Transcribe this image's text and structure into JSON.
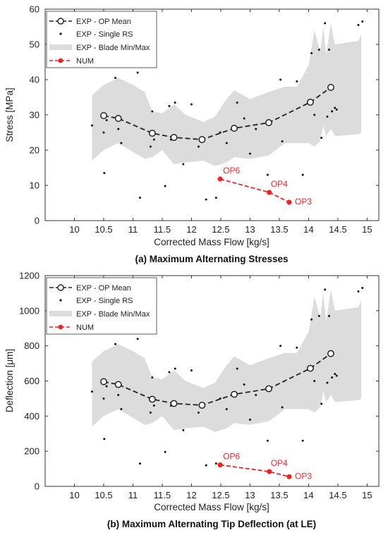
{
  "colors": {
    "num": "#e8262a",
    "band": "#dcdcdc",
    "mean": "#222222",
    "frame": "#333333"
  },
  "chart_data": [
    {
      "type": "line",
      "caption": "(a) Maximum Alternating Stresses",
      "xlabel": "Corrected Mass Flow [kg/s]",
      "ylabel": "Stress [MPa]",
      "xlim": [
        9.5,
        15.2
      ],
      "ylim": [
        0,
        60
      ],
      "xticks": [
        10,
        10.5,
        11,
        11.5,
        12,
        12.5,
        13,
        13.5,
        14,
        14.5,
        15
      ],
      "yticks": [
        0,
        10,
        20,
        30,
        40,
        50,
        60
      ],
      "grid": false,
      "legend_position": "top-left",
      "legend": [
        "EXP - OP Mean",
        "EXP - Single RS",
        "EXP - Blade Min/Max",
        "NUM"
      ],
      "band": {
        "name": "EXP - Blade Min/Max",
        "x": [
          10.3,
          10.5,
          10.75,
          11.0,
          11.2,
          11.33,
          11.5,
          11.7,
          11.9,
          12.2,
          12.4,
          12.6,
          12.73,
          13.0,
          13.32,
          13.6,
          13.8,
          14.0,
          14.1,
          14.2,
          14.25,
          14.3,
          14.38,
          14.45,
          14.85,
          14.9
        ],
        "upper": [
          35.5,
          38.5,
          40.5,
          38.5,
          36.5,
          31.0,
          30.5,
          33.0,
          30.0,
          28.0,
          29.5,
          34.5,
          37.0,
          34.5,
          36.5,
          38.0,
          38.0,
          44.0,
          54.0,
          48.0,
          55.0,
          47.0,
          56.0,
          50.0,
          51.0,
          53.0
        ],
        "lower": [
          17.0,
          20.0,
          22.0,
          19.5,
          17.5,
          18.0,
          20.0,
          16.0,
          16.5,
          17.0,
          15.5,
          16.5,
          18.0,
          17.5,
          18.5,
          22.0,
          22.0,
          22.0,
          21.0,
          22.5,
          27.0,
          24.0,
          26.0,
          24.0,
          24.5,
          25.0
        ]
      },
      "series": [
        {
          "name": "EXP - OP Mean",
          "x": [
            10.5,
            10.75,
            11.33,
            11.7,
            12.18,
            12.73,
            13.32,
            14.03,
            14.38
          ],
          "y": [
            29.8,
            29.0,
            24.8,
            23.6,
            23.0,
            26.2,
            27.8,
            33.6,
            37.8
          ]
        },
        {
          "name": "NUM",
          "x": [
            12.49,
            13.33,
            13.67
          ],
          "y": [
            11.8,
            8.0,
            5.2
          ],
          "labels": [
            "OP6",
            "OP4",
            "OP3"
          ]
        }
      ],
      "scatter": {
        "name": "EXP - Single RS",
        "x": [
          10.3,
          10.5,
          10.51,
          10.55,
          10.7,
          10.75,
          10.8,
          11.08,
          11.12,
          11.3,
          11.33,
          11.36,
          11.55,
          11.62,
          11.65,
          11.72,
          11.86,
          12.0,
          12.12,
          12.25,
          12.42,
          12.49,
          12.6,
          12.78,
          12.9,
          13.0,
          13.1,
          13.3,
          13.52,
          13.55,
          13.8,
          13.9,
          14.05,
          14.1,
          14.18,
          14.22,
          14.28,
          14.32,
          14.35,
          14.4,
          14.45,
          14.48,
          14.85,
          14.92
        ],
        "y": [
          27.0,
          25.0,
          13.5,
          28.5,
          40.5,
          26.0,
          22.0,
          42.0,
          6.5,
          21.0,
          31.0,
          23.0,
          9.8,
          32.5,
          23.0,
          33.5,
          16.0,
          33.0,
          21.0,
          6.0,
          6.5,
          25.0,
          22.0,
          33.5,
          29.0,
          19.0,
          26.0,
          13.0,
          40.0,
          22.5,
          39.5,
          13.0,
          47.5,
          30.0,
          48.5,
          23.5,
          56.0,
          29.5,
          48.5,
          31.0,
          32.0,
          31.5,
          55.5,
          56.5
        ]
      }
    },
    {
      "type": "line",
      "caption": "(b) Maximum Alternating Tip Deflection (at LE)",
      "xlabel": "Corrected Mass Flow [kg/s]",
      "ylabel": "Deflection [μm]",
      "xlim": [
        9.5,
        15.2
      ],
      "ylim": [
        0,
        1200
      ],
      "xticks": [
        10,
        10.5,
        11,
        11.5,
        12,
        12.5,
        13,
        13.5,
        14,
        14.5,
        15
      ],
      "yticks": [
        0,
        200,
        400,
        600,
        800,
        1000,
        1200
      ],
      "grid": false,
      "legend_position": "top-left",
      "legend": [
        "EXP - OP Mean",
        "EXP - Single RS",
        "EXP - Blade Min/Max",
        "NUM"
      ],
      "band": {
        "name": "EXP - Blade Min/Max",
        "x": [
          10.3,
          10.5,
          10.75,
          11.0,
          11.2,
          11.33,
          11.5,
          11.7,
          11.9,
          12.2,
          12.4,
          12.6,
          12.73,
          13.0,
          13.32,
          13.6,
          13.8,
          14.0,
          14.1,
          14.2,
          14.25,
          14.3,
          14.38,
          14.45,
          14.85,
          14.9
        ],
        "upper": [
          710,
          770,
          810,
          770,
          730,
          620,
          610,
          660,
          600,
          560,
          590,
          690,
          740,
          690,
          730,
          760,
          760,
          880,
          1080,
          960,
          1100,
          940,
          1120,
          1000,
          1020,
          1060
        ],
        "lower": [
          340,
          400,
          440,
          390,
          350,
          360,
          400,
          320,
          330,
          340,
          310,
          330,
          360,
          350,
          370,
          440,
          440,
          440,
          420,
          450,
          540,
          480,
          520,
          480,
          490,
          500
        ]
      },
      "series": [
        {
          "name": "EXP - OP Mean",
          "x": [
            10.5,
            10.75,
            11.33,
            11.7,
            12.18,
            12.73,
            13.32,
            14.03,
            14.38
          ],
          "y": [
            596,
            580,
            496,
            472,
            462,
            524,
            556,
            672,
            756
          ]
        },
        {
          "name": "NUM",
          "x": [
            12.49,
            13.33,
            13.67
          ],
          "y": [
            122,
            84,
            55
          ],
          "labels": [
            "OP6",
            "OP4",
            "OP3"
          ]
        }
      ],
      "scatter": {
        "name": "EXP - Single RS",
        "x": [
          10.3,
          10.5,
          10.51,
          10.55,
          10.7,
          10.75,
          10.8,
          11.08,
          11.12,
          11.3,
          11.33,
          11.36,
          11.55,
          11.62,
          11.65,
          11.72,
          11.86,
          12.0,
          12.12,
          12.25,
          12.42,
          12.49,
          12.6,
          12.78,
          12.9,
          13.0,
          13.1,
          13.3,
          13.52,
          13.55,
          13.8,
          13.9,
          14.05,
          14.1,
          14.18,
          14.22,
          14.28,
          14.32,
          14.35,
          14.4,
          14.45,
          14.48,
          14.85,
          14.92
        ],
        "y": [
          540,
          500,
          270,
          570,
          810,
          520,
          440,
          840,
          130,
          420,
          620,
          460,
          196,
          650,
          460,
          670,
          320,
          660,
          420,
          120,
          130,
          500,
          440,
          670,
          580,
          380,
          520,
          260,
          800,
          450,
          790,
          260,
          950,
          600,
          970,
          470,
          1120,
          590,
          970,
          620,
          640,
          630,
          1110,
          1130
        ]
      }
    }
  ]
}
